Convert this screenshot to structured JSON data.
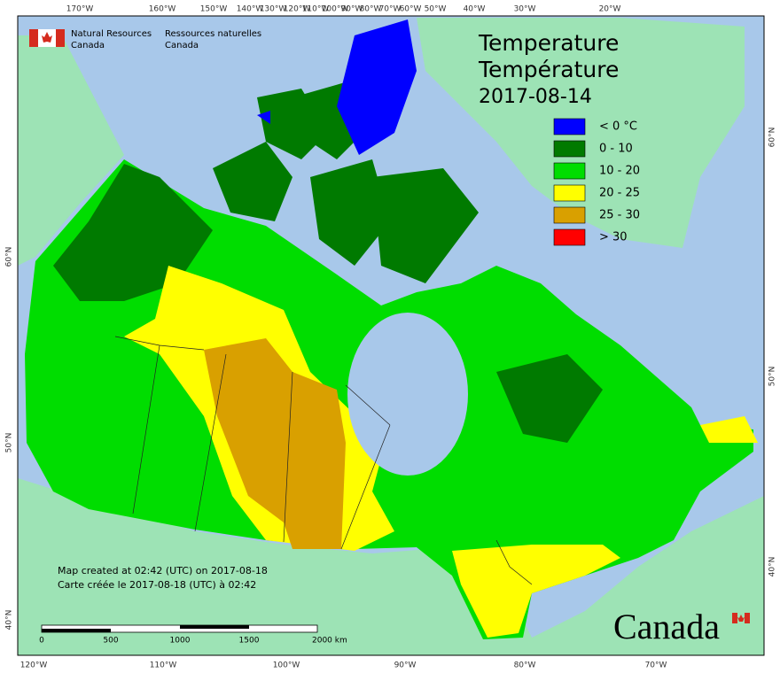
{
  "header": {
    "en_line1": "Natural Resources",
    "en_line2": "Canada",
    "fr_line1": "Ressources naturelles",
    "fr_line2": "Canada"
  },
  "title": {
    "en": "Temperature",
    "fr": "Température",
    "date": "2017-08-14"
  },
  "legend": {
    "items": [
      {
        "label": "< 0 °C",
        "color": "#0000ff"
      },
      {
        "label": "0 - 10",
        "color": "#007a00"
      },
      {
        "label": "10 - 20",
        "color": "#00dd00"
      },
      {
        "label": "20 - 25",
        "color": "#ffff00"
      },
      {
        "label": "25 - 30",
        "color": "#d9a000"
      },
      {
        "label": "> 30",
        "color": "#ff0000"
      }
    ]
  },
  "graticule": {
    "top": [
      "170°W",
      "160°W",
      "150°W",
      "140°W",
      "130°W",
      "120°W",
      "110°W",
      "100°W",
      "90°W",
      "80°W",
      "70°W",
      "60°W",
      "50°W",
      "40°W",
      "30°W",
      "20°W"
    ],
    "bottom": [
      "120°W",
      "110°W",
      "100°W",
      "90°W",
      "80°W",
      "70°W"
    ],
    "left": [
      "60°N",
      "50°N",
      "40°N"
    ],
    "right": [
      "60°N",
      "50°N",
      "40°N"
    ]
  },
  "credits": {
    "en": "Map created at 02:42 (UTC) on 2017-08-18",
    "fr": "Carte créée le 2017-08-18 (UTC) à 02:42"
  },
  "scale_bar": {
    "labels": [
      "0",
      "500",
      "1000",
      "1500",
      "2000 km"
    ]
  },
  "wordmark": "Canada"
}
